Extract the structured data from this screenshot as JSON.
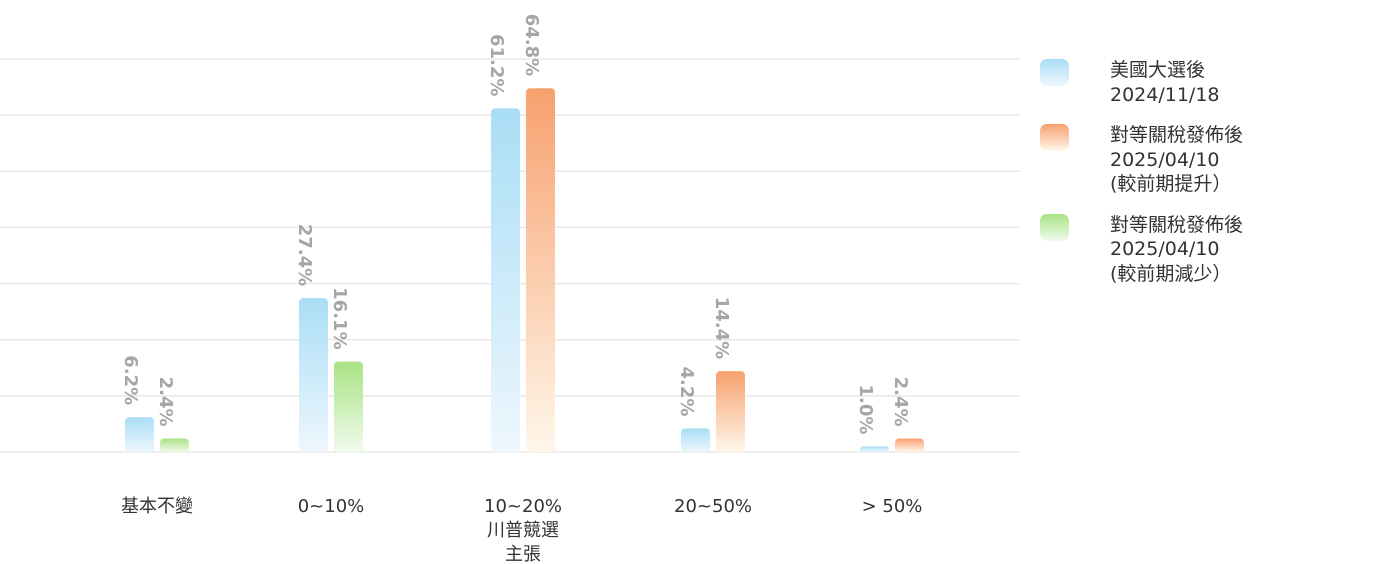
{
  "colors": {
    "series_1_top": "#a9def6",
    "series_1_bottom": "#eef7fd",
    "series_2_top": "#f7a06e",
    "series_2_bottom": "#fff7ea",
    "series_3_top": "#a8e384",
    "series_3_bottom": "#f1fbec",
    "gridline": "#e8e8e8",
    "value_label": "#a6a6a6",
    "category_label": "#333333"
  },
  "legend": {
    "items": [
      {
        "line1": "美國大選後",
        "line2": "2024/11/18",
        "line3": ""
      },
      {
        "line1": "對等關稅發佈後",
        "line2": "2025/04/10",
        "line3": "(較前期提升）"
      },
      {
        "line1": "對等關稅發佈後",
        "line2": "2025/04/10",
        "line3": "(較前期減少）"
      }
    ]
  },
  "chart_data": {
    "type": "bar",
    "title": "",
    "xlabel": "",
    "ylabel": "",
    "ylim": [
      0,
      70
    ],
    "grid": true,
    "legend_position": "right",
    "categories": [
      [
        "基本不變"
      ],
      [
        "0~10%"
      ],
      [
        "10~20%",
        "川普競選",
        "主張"
      ],
      [
        "20~50%"
      ],
      [
        "> 50%"
      ]
    ],
    "groups": [
      {
        "bars": [
          {
            "series": 0,
            "value": 6.2,
            "label": "6.2%"
          },
          {
            "series": 2,
            "value": 2.4,
            "label": "2.4%"
          }
        ]
      },
      {
        "bars": [
          {
            "series": 0,
            "value": 27.4,
            "label": "27.4%"
          },
          {
            "series": 2,
            "value": 16.1,
            "label": "16.1%"
          }
        ]
      },
      {
        "bars": [
          {
            "series": 0,
            "value": 61.2,
            "label": "61.2%"
          },
          {
            "series": 1,
            "value": 64.8,
            "label": "64.8%"
          }
        ]
      },
      {
        "bars": [
          {
            "series": 0,
            "value": 4.2,
            "label": "4.2%"
          },
          {
            "series": 1,
            "value": 14.4,
            "label": "14.4%"
          }
        ]
      },
      {
        "bars": [
          {
            "series": 0,
            "value": 1.0,
            "label": "1.0%"
          },
          {
            "series": 1,
            "value": 2.4,
            "label": "2.4%"
          }
        ]
      }
    ],
    "series": [
      {
        "name": "美國大選後 2024/11/18"
      },
      {
        "name": "對等關稅發佈後 2025/04/10 (較前期提升）"
      },
      {
        "name": "對等關稅發佈後 2025/04/10 (較前期減少）"
      }
    ]
  }
}
